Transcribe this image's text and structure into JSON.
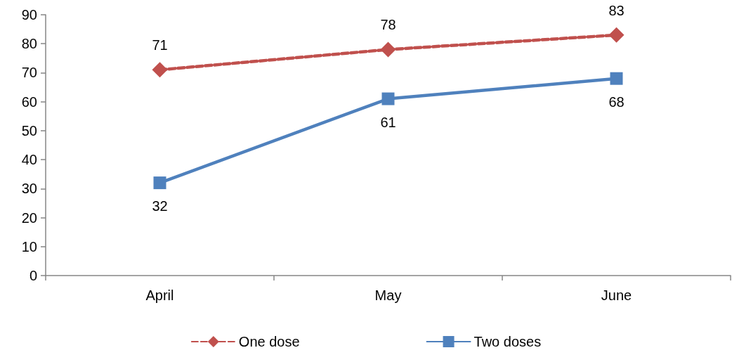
{
  "chart_data": {
    "type": "line",
    "categories": [
      "April",
      "May",
      "June"
    ],
    "series": [
      {
        "name": "One dose",
        "color": "#c0504d",
        "values": [
          71,
          78,
          83
        ],
        "marker": "diamond",
        "line_style": "dashed"
      },
      {
        "name": "Two doses",
        "color": "#4f81bd",
        "values": [
          32,
          61,
          68
        ],
        "marker": "square",
        "line_style": "solid"
      }
    ],
    "ylim": [
      0,
      90
    ],
    "yticks": [
      0,
      10,
      20,
      30,
      40,
      50,
      60,
      70,
      80,
      90
    ],
    "grid": false,
    "legend": "bottom",
    "data_labels": true
  }
}
